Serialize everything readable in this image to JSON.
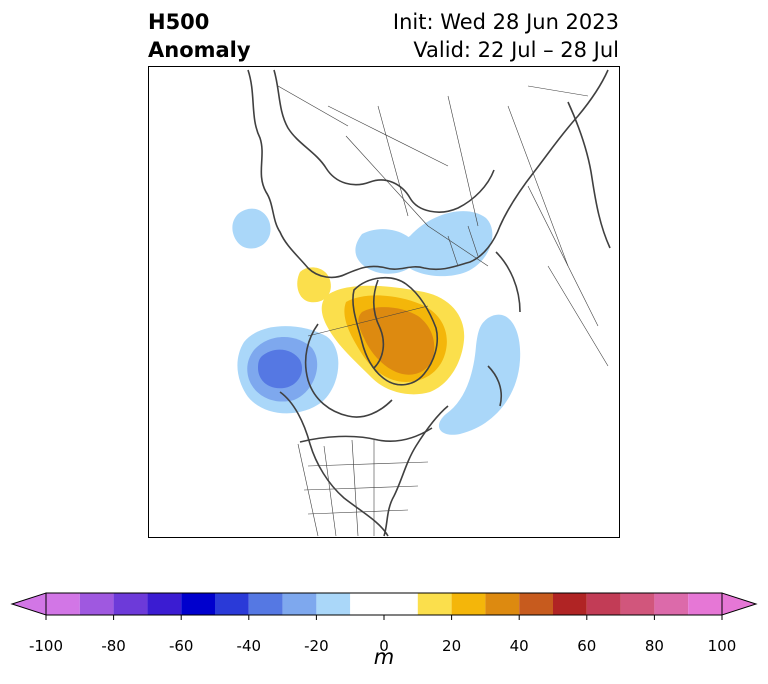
{
  "header": {
    "title_line1": "H500",
    "title_line2": "Anomaly",
    "init_text": "Init: Wed 28 Jun 2023",
    "valid_text": "Valid: 22 Jul – 28 Jul"
  },
  "colorbar": {
    "unit": "m",
    "tick_labels": [
      "-100",
      "-80",
      "-60",
      "-40",
      "-20",
      "0",
      "20",
      "40",
      "60",
      "80",
      "100"
    ],
    "bounds": [
      -100,
      -90,
      -80,
      -70,
      -60,
      -50,
      -40,
      -30,
      -20,
      -10,
      10,
      20,
      30,
      40,
      50,
      60,
      70,
      80,
      90,
      100
    ],
    "colors": [
      "#d276e6",
      "#9f58e0",
      "#6d3ad9",
      "#3b1cd2",
      "#0000cd",
      "#2a3ad8",
      "#5578e3",
      "#7ea8ee",
      "#aad7f9",
      "#ffffff",
      "#fbdf4c",
      "#f4b60a",
      "#dd8a10",
      "#c75b1e",
      "#b02424",
      "#c23c56",
      "#d1567c",
      "#dc6aaa",
      "#e677d6"
    ],
    "under_color": "#d276e6",
    "over_color": "#e677d6"
  },
  "map": {
    "projection": "north-polar-stereographic",
    "coastline_color": "#404040",
    "border_color": "#404040"
  }
}
